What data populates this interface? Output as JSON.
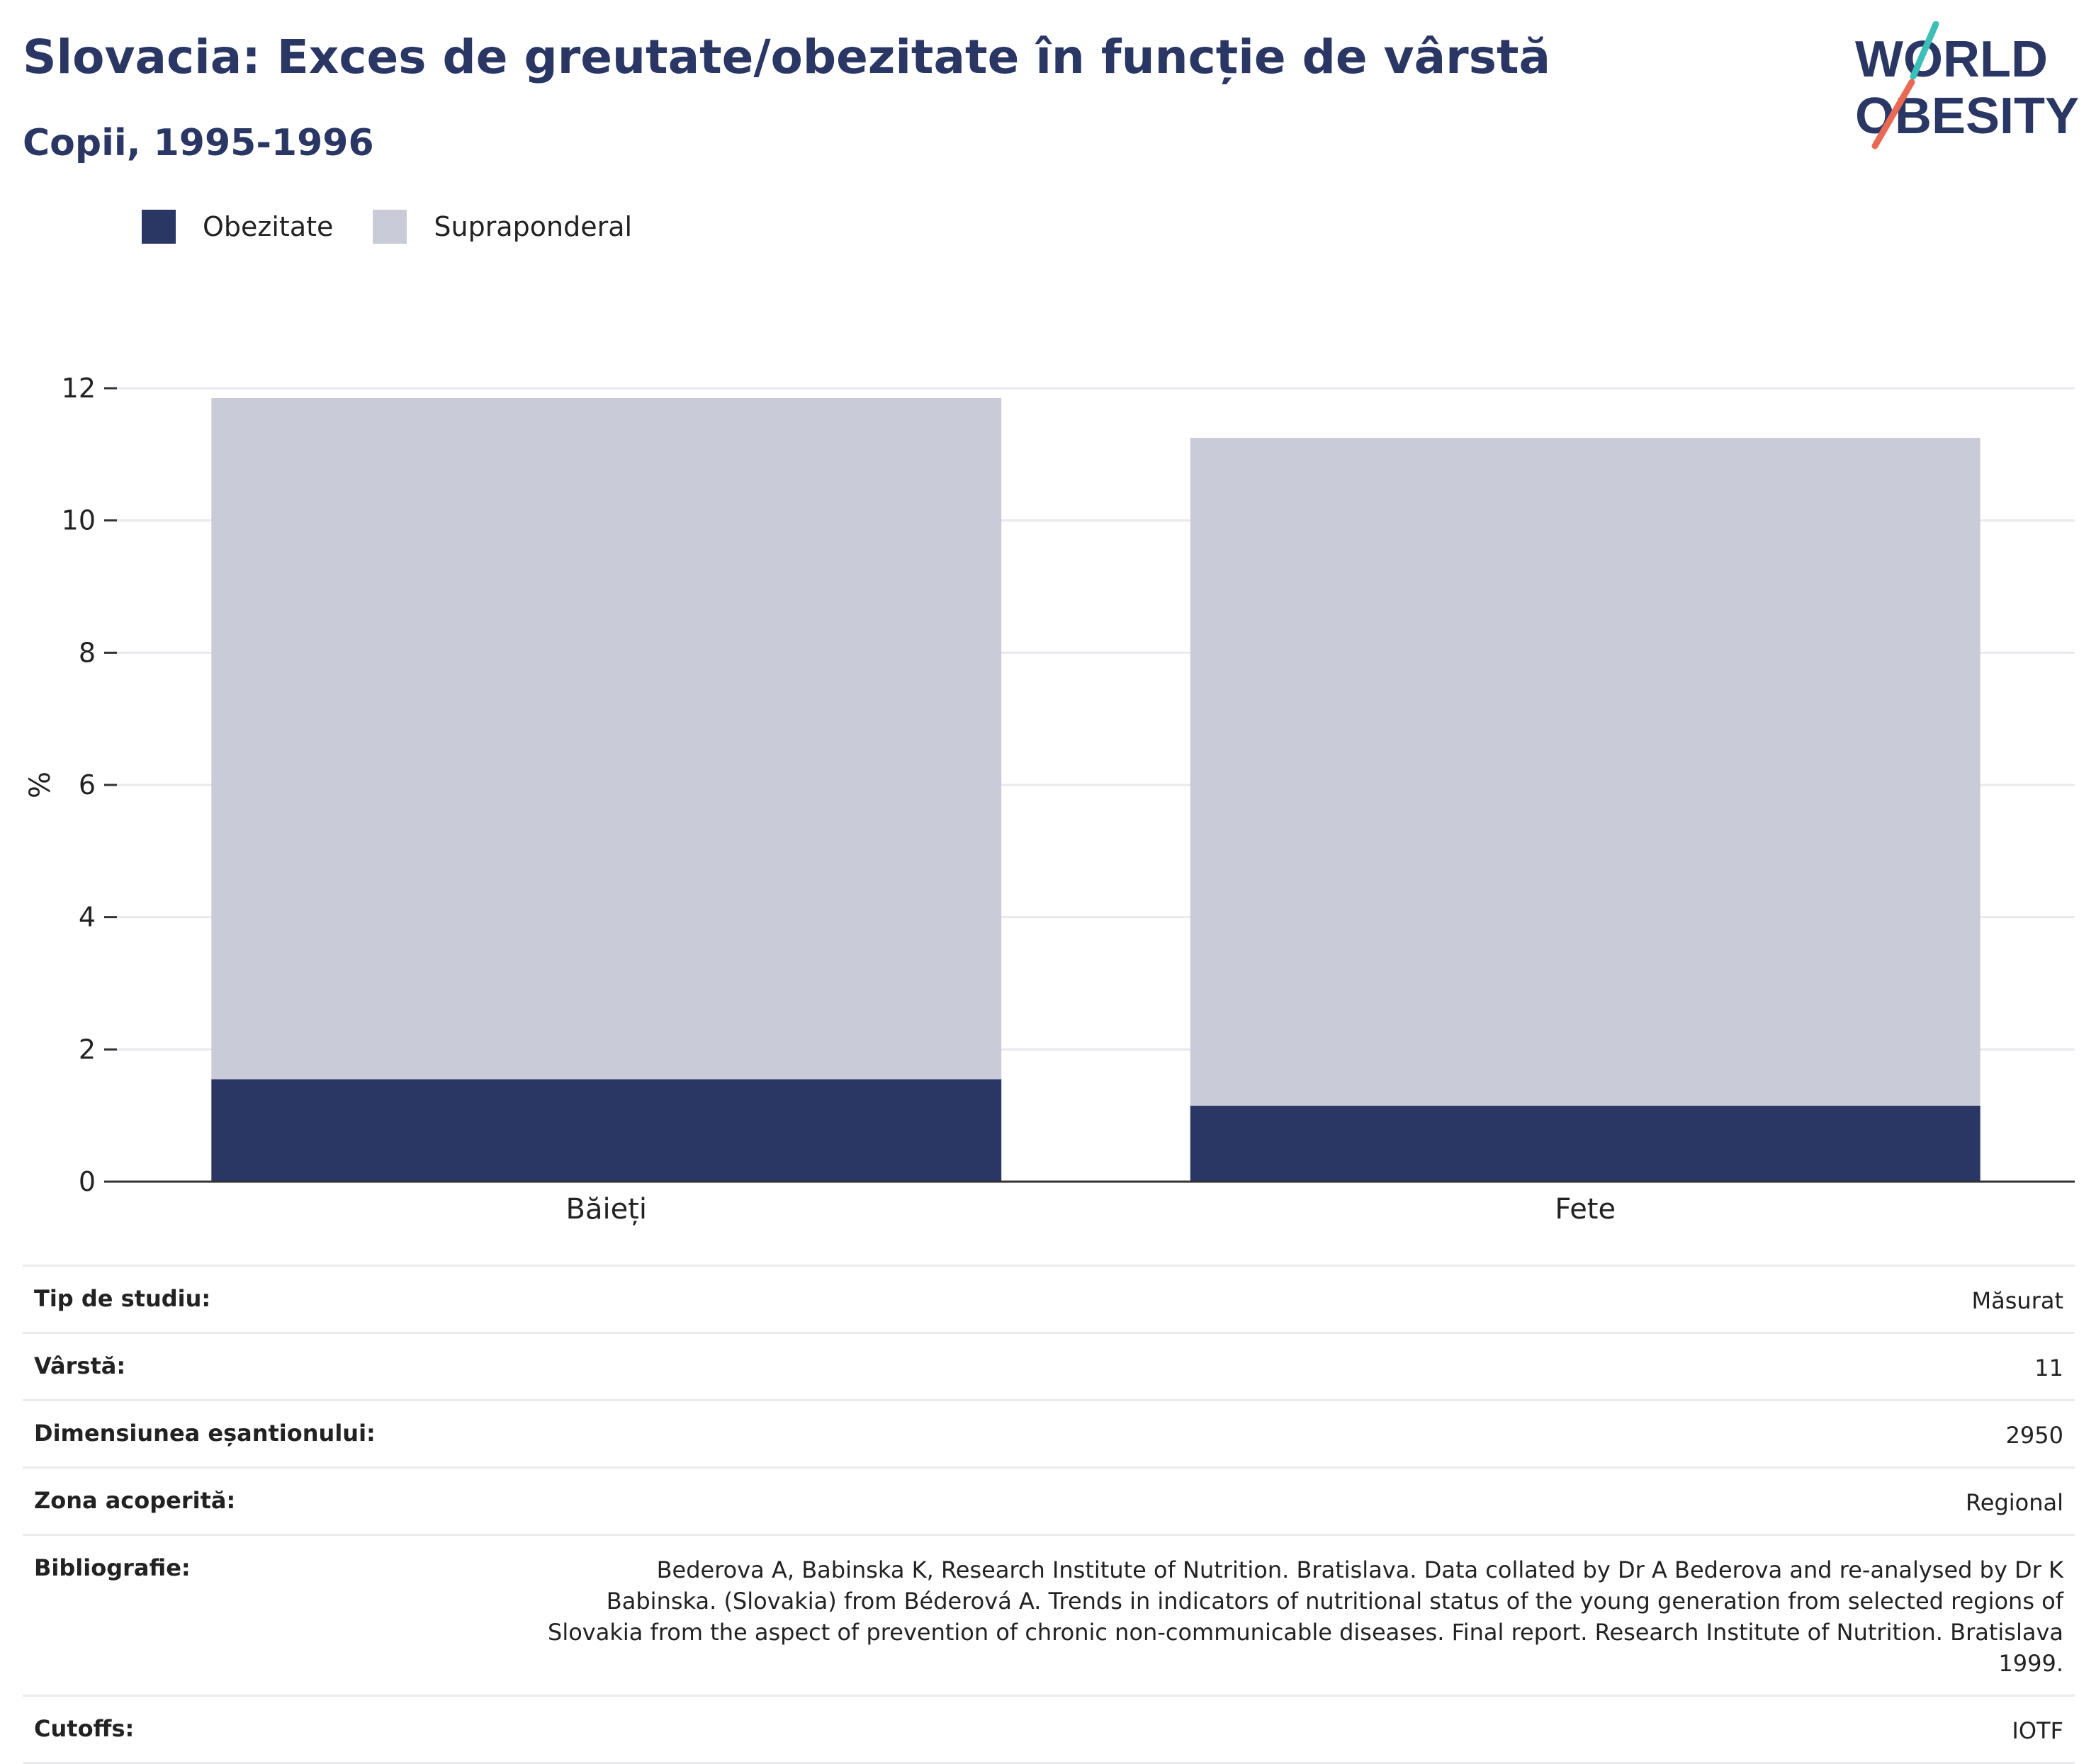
{
  "header": {
    "title": "Slovacia: Exces de greutate/obezitate în funcție de vârstă",
    "subtitle": "Copii, 1995-1996"
  },
  "logo": {
    "line1": "WORLD",
    "line2": "OBESITY",
    "accent_teal": "#3bbfb6",
    "accent_coral": "#e86a55"
  },
  "legend": [
    {
      "label": "Obezitate",
      "color": "#2a3663"
    },
    {
      "label": "Supraponderal",
      "color": "#c9ccd8"
    }
  ],
  "chart_data": {
    "type": "bar",
    "stacked": true,
    "categories": [
      "Băieți",
      "Fete"
    ],
    "series": [
      {
        "name": "Obezitate",
        "values": [
          1.55,
          1.15
        ],
        "color": "#2a3663"
      },
      {
        "name": "Supraponderal",
        "values": [
          10.3,
          10.1
        ],
        "color": "#c9ccd8"
      }
    ],
    "ylabel": "%",
    "ylim": [
      0,
      12
    ],
    "yticks": [
      0,
      2,
      4,
      6,
      8,
      10,
      12
    ],
    "grid": true,
    "legend_position": "top-left"
  },
  "info": [
    {
      "label": "Tip de studiu:",
      "value": "Măsurat"
    },
    {
      "label": "Vârstă:",
      "value": "11"
    },
    {
      "label": "Dimensiunea eșantionului:",
      "value": "2950"
    },
    {
      "label": "Zona acoperită:",
      "value": "Regional"
    },
    {
      "label": "Bibliografie:",
      "value": "Bederova A, Babinska K, Research Institute of Nutrition. Bratislava. Data collated by Dr A Bederova and re-analysed by Dr K Babinska. (Slovakia) from Béderová A. Trends in indicators of nutritional status of the young generation from selected regions of Slovakia from the aspect of prevention of chronic non-communicable diseases. Final report. Research Institute of Nutrition. Bratislava 1999."
    },
    {
      "label": "Cutoffs:",
      "value": "IOTF"
    }
  ]
}
